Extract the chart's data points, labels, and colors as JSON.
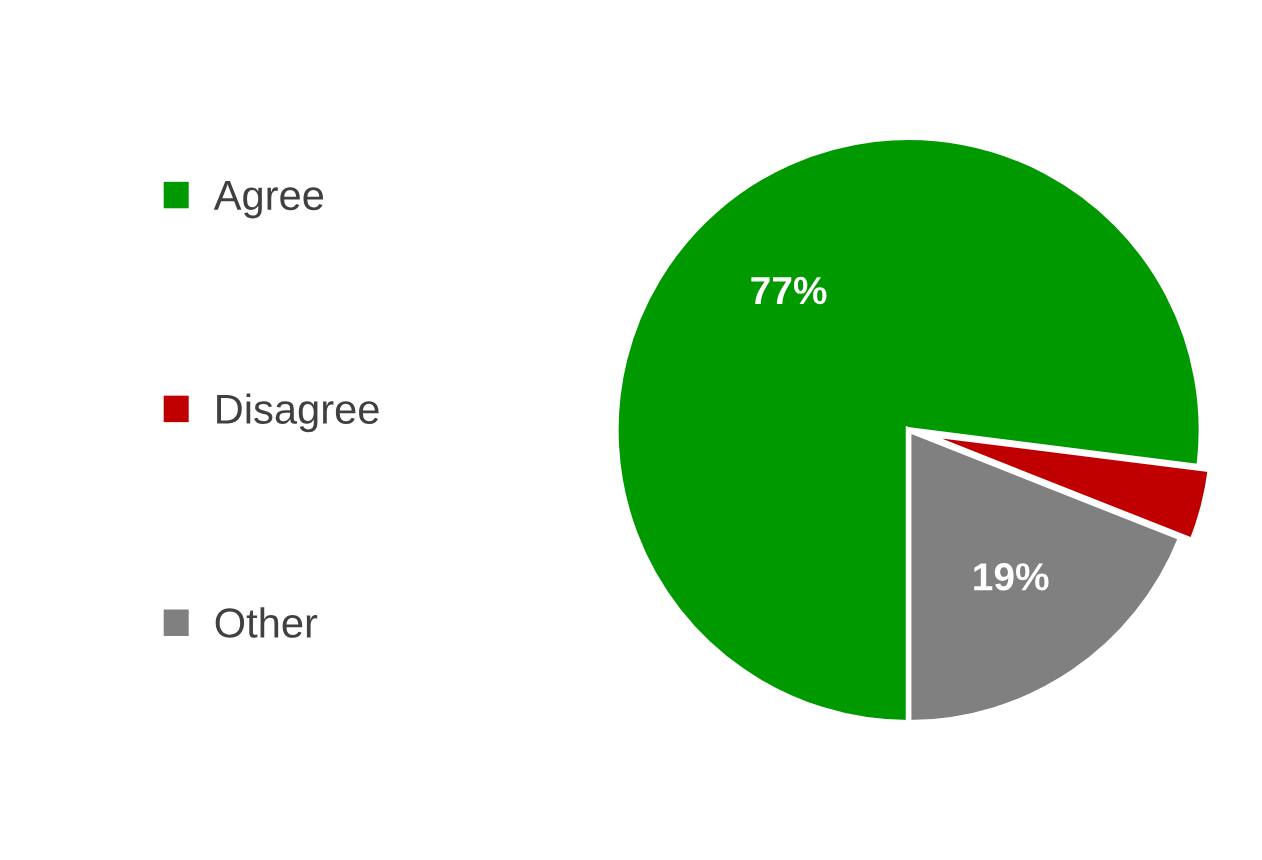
{
  "chart_data": {
    "type": "pie",
    "categories": [
      "Agree",
      "Disagree",
      "Other"
    ],
    "values": [
      77,
      4,
      19
    ],
    "colors": [
      "#009900",
      "#c00000",
      "#808080"
    ],
    "value_labels": [
      "77%",
      null,
      "19%"
    ],
    "legend": "left"
  }
}
